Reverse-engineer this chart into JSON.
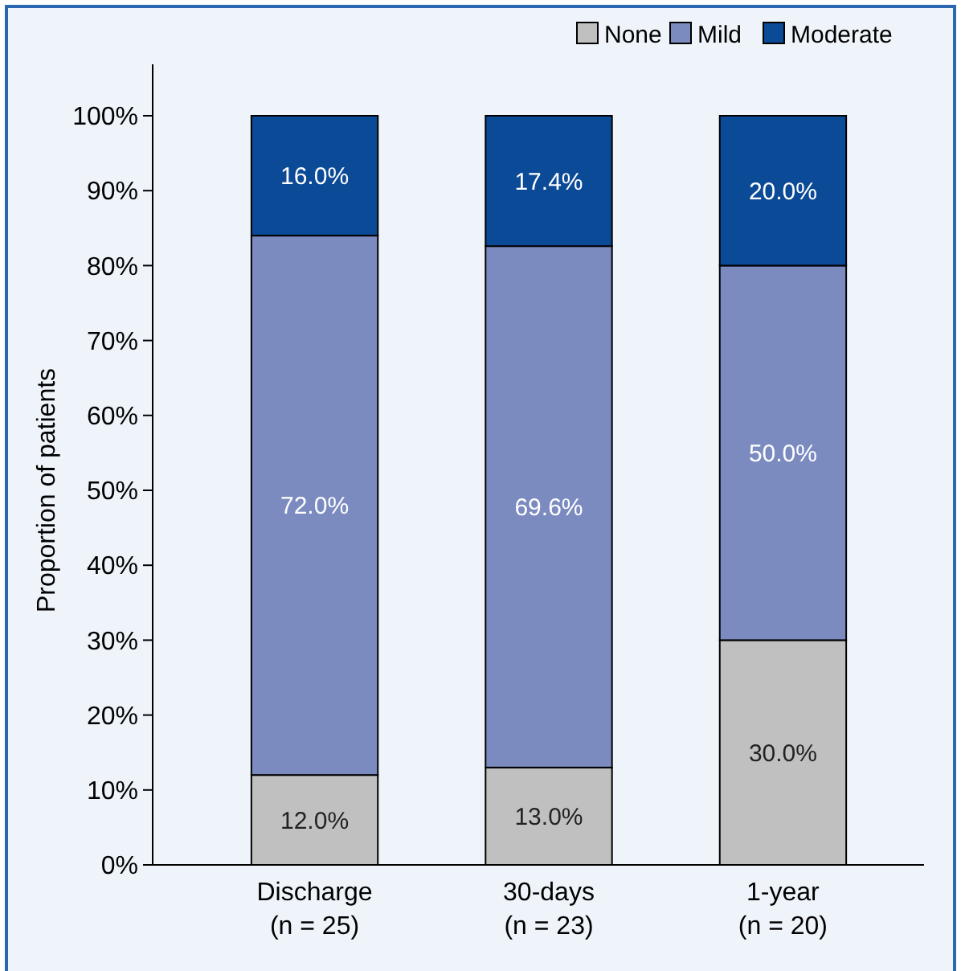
{
  "chart_data": {
    "type": "bar",
    "stacked": true,
    "ylabel": "Proportion of patients",
    "categories": [
      "Discharge\n(n = 25)",
      "30-days\n(n = 23)",
      "1-year\n(n = 20)"
    ],
    "series": [
      {
        "name": "None",
        "color": "#c0c0c0",
        "values": [
          12.0,
          13.0,
          30.0
        ],
        "value_labels": [
          "12.0%",
          "13.0%",
          "30.0%"
        ]
      },
      {
        "name": "Mild",
        "color": "#7b8bc0",
        "values": [
          72.0,
          69.6,
          50.0
        ],
        "value_labels": [
          "72.0%",
          "69.6%",
          "50.0%"
        ]
      },
      {
        "name": "Moderate",
        "color": "#0b4a96",
        "values": [
          16.0,
          17.4,
          20.0
        ],
        "value_labels": [
          "16.0%",
          "17.4%",
          "20.0%"
        ]
      }
    ],
    "ylim": [
      0,
      100
    ],
    "yticks": [
      {
        "value": 0,
        "label": "0%"
      },
      {
        "value": 10,
        "label": "10%"
      },
      {
        "value": 20,
        "label": "20%"
      },
      {
        "value": 30,
        "label": "30%"
      },
      {
        "value": 40,
        "label": "40%"
      },
      {
        "value": 50,
        "label": "50%"
      },
      {
        "value": 60,
        "label": "60%"
      },
      {
        "value": 70,
        "label": "70%"
      },
      {
        "value": 80,
        "label": "80%"
      },
      {
        "value": 90,
        "label": "90%"
      },
      {
        "value": 100,
        "label": "100%"
      }
    ],
    "legend": "top right",
    "grid": false
  }
}
